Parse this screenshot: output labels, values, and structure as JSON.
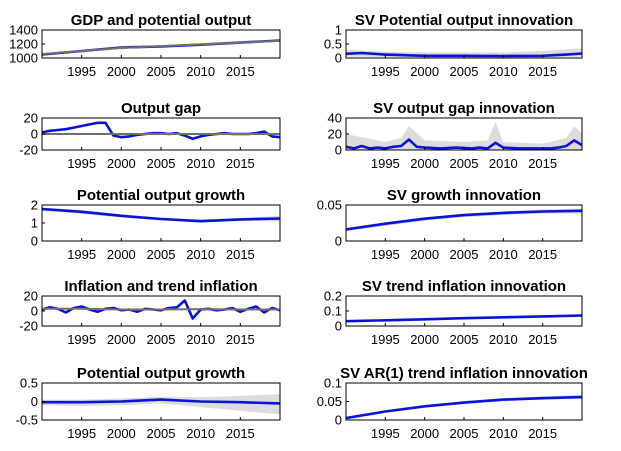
{
  "figure": {
    "background": "#ffffff",
    "band_color": "#dcdcdc",
    "line_color": "#0a14d6",
    "gray_color": "#707070"
  },
  "chart_data": [
    {
      "id": "p1",
      "type": "line",
      "title": "GDP and potential output",
      "xlim": [
        1990,
        2020
      ],
      "xticks": [
        1995,
        2000,
        2005,
        2010,
        2015
      ],
      "ylim": [
        1000,
        1400
      ],
      "yticks": [
        1000,
        1200,
        1400
      ],
      "series": [
        {
          "color": "#0a14d6",
          "x": [
            1990,
            1995,
            2000,
            2005,
            2010,
            2015,
            2020
          ],
          "y": [
            1050,
            1100,
            1150,
            1165,
            1190,
            1220,
            1250
          ]
        },
        {
          "color": "#707070",
          "x": [
            1990,
            1995,
            2000,
            2005,
            2010,
            2015,
            2020
          ],
          "y": [
            1055,
            1100,
            1145,
            1170,
            1195,
            1220,
            1245
          ]
        }
      ]
    },
    {
      "id": "p2",
      "type": "line",
      "title": "SV Potential output innovation",
      "xlim": [
        1990,
        2020
      ],
      "xticks": [
        1995,
        2000,
        2005,
        2010,
        2015
      ],
      "ylim": [
        0,
        1
      ],
      "yticks": [
        0,
        0.5,
        1
      ],
      "band": {
        "x": [
          1990,
          1995,
          2000,
          2005,
          2010,
          2015,
          2020
        ],
        "lo": [
          0.05,
          0.04,
          0.03,
          0.03,
          0.03,
          0.04,
          0.05
        ],
        "hi": [
          0.3,
          0.22,
          0.2,
          0.2,
          0.2,
          0.25,
          0.35
        ]
      },
      "series": [
        {
          "color": "#0a14d6",
          "x": [
            1990,
            1992,
            1995,
            2000,
            2005,
            2010,
            2015,
            2018,
            2020
          ],
          "y": [
            0.15,
            0.18,
            0.12,
            0.08,
            0.08,
            0.07,
            0.08,
            0.12,
            0.16
          ]
        }
      ]
    },
    {
      "id": "p3",
      "type": "line",
      "title": "Output gap",
      "xlim": [
        1990,
        2020
      ],
      "xticks": [
        1995,
        2000,
        2005,
        2010,
        2015
      ],
      "ylim": [
        -20,
        20
      ],
      "yticks": [
        -20,
        0,
        20
      ],
      "series": [
        {
          "color": "#0a14d6",
          "x": [
            1990,
            1991,
            1992,
            1993,
            1994,
            1995,
            1996,
            1997,
            1998,
            1999,
            2000,
            2001,
            2002,
            2003,
            2004,
            2005,
            2006,
            2007,
            2008,
            2009,
            2010,
            2011,
            2012,
            2013,
            2014,
            2015,
            2016,
            2017,
            2018,
            2019,
            2020
          ],
          "y": [
            2,
            4,
            5,
            6,
            8,
            10,
            12,
            14,
            14,
            -2,
            -4,
            -3,
            -1,
            0,
            1,
            1,
            0,
            1,
            -2,
            -6,
            -3,
            -1,
            0,
            1,
            0,
            0,
            0,
            1,
            3,
            -3,
            -4
          ]
        },
        {
          "color": "#707070",
          "x": [
            1990,
            2020
          ],
          "y": [
            0,
            0
          ]
        }
      ]
    },
    {
      "id": "p4",
      "type": "line",
      "title": "SV output gap innovation",
      "xlim": [
        1990,
        2020
      ],
      "xticks": [
        1995,
        2000,
        2005,
        2010,
        2015
      ],
      "ylim": [
        0,
        40
      ],
      "yticks": [
        0,
        20,
        40
      ],
      "band": {
        "x": [
          1990,
          1995,
          1997,
          1998,
          2000,
          2005,
          2008,
          2009,
          2010,
          2015,
          2018,
          2019,
          2020
        ],
        "lo": [
          0,
          0,
          0,
          0,
          0,
          0,
          0,
          0,
          0,
          0,
          0,
          0,
          0
        ],
        "hi": [
          20,
          10,
          15,
          30,
          12,
          10,
          12,
          35,
          10,
          8,
          15,
          30,
          20
        ]
      },
      "series": [
        {
          "color": "#0a14d6",
          "x": [
            1990,
            1991,
            1992,
            1993,
            1994,
            1995,
            1996,
            1997,
            1998,
            1999,
            2000,
            2002,
            2004,
            2006,
            2007,
            2008,
            2009,
            2010,
            2012,
            2014,
            2016,
            2017,
            2018,
            2019,
            2020
          ],
          "y": [
            4,
            2,
            5,
            2,
            3,
            2,
            4,
            5,
            13,
            4,
            3,
            2,
            3,
            2,
            3,
            2,
            9,
            3,
            2,
            2,
            2,
            3,
            5,
            12,
            6
          ]
        }
      ]
    },
    {
      "id": "p5",
      "type": "line",
      "title": "Potential output growth",
      "xlim": [
        1990,
        2020
      ],
      "xticks": [
        1995,
        2000,
        2005,
        2010,
        2015
      ],
      "ylim": [
        0,
        2
      ],
      "yticks": [
        0,
        1,
        2
      ],
      "band": {
        "x": [
          1990,
          1995,
          2000,
          2005,
          2010,
          2015,
          2020
        ],
        "lo": [
          1.65,
          1.5,
          1.3,
          1.15,
          1.05,
          1.1,
          1.1
        ],
        "hi": [
          1.85,
          1.72,
          1.48,
          1.3,
          1.2,
          1.28,
          1.4
        ]
      },
      "series": [
        {
          "color": "#0a14d6",
          "x": [
            1990,
            1995,
            2000,
            2005,
            2010,
            2015,
            2020
          ],
          "y": [
            1.78,
            1.62,
            1.4,
            1.22,
            1.1,
            1.2,
            1.25
          ]
        }
      ]
    },
    {
      "id": "p6",
      "type": "line",
      "title": "SV growth innovation",
      "xlim": [
        1990,
        2020
      ],
      "xticks": [
        1995,
        2000,
        2005,
        2010,
        2015
      ],
      "ylim": [
        0,
        0.05
      ],
      "yticks": [
        0,
        0.05
      ],
      "band": {
        "x": [
          1990,
          1995,
          2000,
          2005,
          2010,
          2015,
          2020
        ],
        "lo": [
          0.014,
          0.021,
          0.028,
          0.033,
          0.036,
          0.038,
          0.038
        ],
        "hi": [
          0.018,
          0.026,
          0.033,
          0.038,
          0.041,
          0.044,
          0.045
        ]
      },
      "series": [
        {
          "color": "#0a14d6",
          "x": [
            1990,
            1995,
            2000,
            2005,
            2010,
            2015,
            2020
          ],
          "y": [
            0.016,
            0.024,
            0.031,
            0.036,
            0.039,
            0.041,
            0.042
          ]
        }
      ]
    },
    {
      "id": "p7",
      "type": "line",
      "title": "Inflation and trend inflation",
      "xlim": [
        1990,
        2020
      ],
      "xticks": [
        1995,
        2000,
        2005,
        2010,
        2015
      ],
      "ylim": [
        -20,
        20
      ],
      "yticks": [
        -20,
        0,
        20
      ],
      "series": [
        {
          "color": "#0a14d6",
          "x": [
            1990,
            1991,
            1992,
            1993,
            1994,
            1995,
            1996,
            1997,
            1998,
            1999,
            2000,
            2001,
            2002,
            2003,
            2004,
            2005,
            2006,
            2007,
            2008,
            2009,
            2010,
            2011,
            2012,
            2013,
            2014,
            2015,
            2016,
            2017,
            2018,
            2019,
            2020
          ],
          "y": [
            2,
            5,
            3,
            -2,
            4,
            6,
            2,
            -1,
            3,
            4,
            1,
            2,
            -1,
            3,
            2,
            1,
            4,
            5,
            14,
            -10,
            2,
            3,
            1,
            2,
            4,
            -1,
            3,
            6,
            -2,
            4,
            1
          ]
        },
        {
          "color": "#707070",
          "x": [
            1990,
            1995,
            2000,
            2005,
            2010,
            2015,
            2020
          ],
          "y": [
            3,
            3,
            2,
            2,
            2.5,
            2,
            2
          ]
        }
      ]
    },
    {
      "id": "p8",
      "type": "line",
      "title": "SV trend inflation innovation",
      "xlim": [
        1990,
        2020
      ],
      "xticks": [
        1995,
        2000,
        2005,
        2010,
        2015
      ],
      "ylim": [
        0,
        0.2
      ],
      "yticks": [
        0,
        0.1,
        0.2
      ],
      "band": {
        "x": [
          1990,
          1995,
          2000,
          2005,
          2010,
          2015,
          2020
        ],
        "lo": [
          0.03,
          0.035,
          0.04,
          0.045,
          0.05,
          0.055,
          0.06
        ],
        "hi": [
          0.035,
          0.042,
          0.05,
          0.058,
          0.065,
          0.072,
          0.078
        ]
      },
      "series": [
        {
          "color": "#0a14d6",
          "x": [
            1990,
            1995,
            2000,
            2005,
            2010,
            2015,
            2020
          ],
          "y": [
            0.032,
            0.038,
            0.045,
            0.052,
            0.058,
            0.064,
            0.07
          ]
        }
      ]
    },
    {
      "id": "p9",
      "type": "line",
      "title": "Potential output growth",
      "xlim": [
        1990,
        2020
      ],
      "xticks": [
        1995,
        2000,
        2005,
        2010,
        2015
      ],
      "ylim": [
        -0.5,
        0.5
      ],
      "yticks": [
        -0.5,
        0,
        0.5
      ],
      "band": {
        "x": [
          1990,
          1995,
          2000,
          2005,
          2010,
          2015,
          2020
        ],
        "lo": [
          -0.1,
          -0.12,
          -0.1,
          -0.05,
          -0.15,
          -0.25,
          -0.35
        ],
        "hi": [
          0.05,
          0.05,
          0.08,
          0.13,
          0.12,
          0.15,
          0.2
        ]
      },
      "series": [
        {
          "color": "#0a14d6",
          "x": [
            1990,
            1995,
            2000,
            2005,
            2010,
            2015,
            2020
          ],
          "y": [
            -0.02,
            -0.02,
            0.0,
            0.05,
            0.0,
            -0.02,
            -0.05
          ]
        }
      ]
    },
    {
      "id": "p10",
      "type": "line",
      "title": "SV  AR(1) trend inflation innovation",
      "xlim": [
        1990,
        2020
      ],
      "xticks": [
        1995,
        2000,
        2005,
        2010,
        2015
      ],
      "ylim": [
        0,
        0.1
      ],
      "yticks": [
        0,
        0.05,
        0.1
      ],
      "band": {
        "x": [
          1990,
          1995,
          2000,
          2005,
          2010,
          2015,
          2020
        ],
        "lo": [
          0.004,
          0.02,
          0.033,
          0.043,
          0.05,
          0.055,
          0.057
        ],
        "hi": [
          0.008,
          0.026,
          0.04,
          0.051,
          0.059,
          0.064,
          0.068
        ]
      },
      "series": [
        {
          "color": "#0a14d6",
          "x": [
            1990,
            1995,
            2000,
            2005,
            2010,
            2015,
            2020
          ],
          "y": [
            0.005,
            0.023,
            0.037,
            0.047,
            0.055,
            0.059,
            0.062
          ]
        }
      ]
    }
  ]
}
